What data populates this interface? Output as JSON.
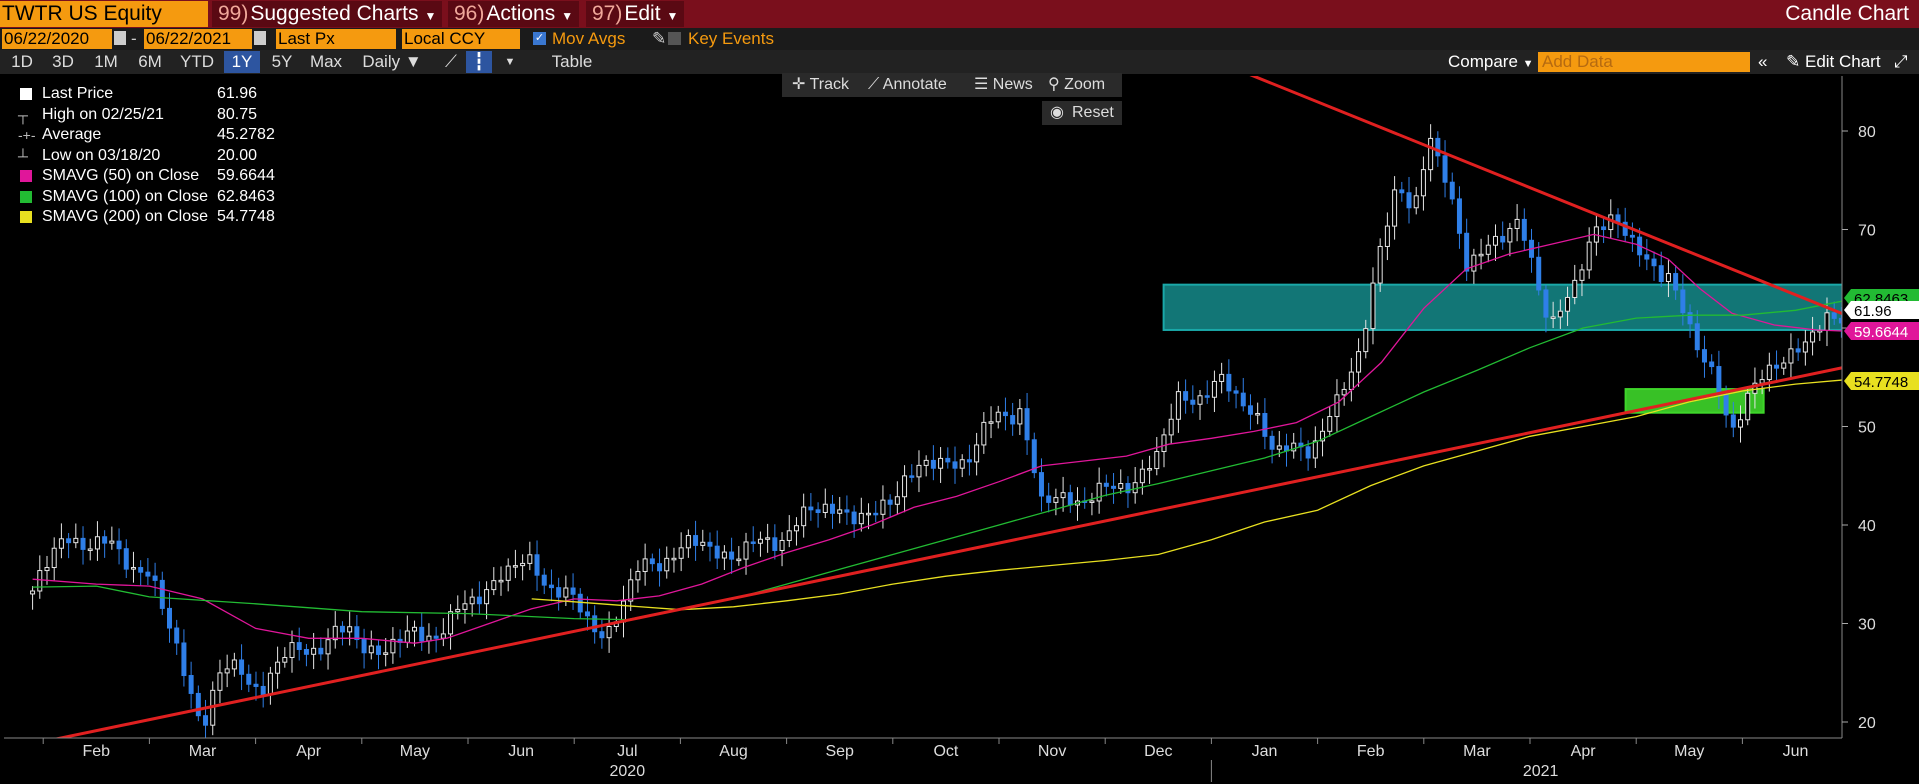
{
  "toolbar": {
    "ticker": "TWTR US Equity",
    "menus": [
      {
        "num": "99)",
        "label": "Suggested Charts"
      },
      {
        "num": "96)",
        "label": "Actions"
      },
      {
        "num": "97)",
        "label": "Edit"
      }
    ],
    "chart_title": "Candle Chart"
  },
  "controls": {
    "start_date": "06/22/2020",
    "end_date": "06/22/2021",
    "date_sep": "-",
    "field": "Last Px",
    "currency": "Local CCY",
    "mov_avgs": "Mov Avgs",
    "key_events": "Key Events",
    "periods": [
      "1D",
      "3D",
      "1M",
      "6M",
      "YTD",
      "1Y",
      "5Y",
      "Max"
    ],
    "selected_period": "1Y",
    "frequency": "Daily",
    "table": "Table",
    "compare": "Compare",
    "add_data_placeholder": "Add Data",
    "edit_chart": "Edit Chart"
  },
  "tools": {
    "track": "Track",
    "annotate": "Annotate",
    "news": "News",
    "zoom": "Zoom",
    "reset": "Reset"
  },
  "legend": [
    {
      "name": "Last Price",
      "value": "61.96",
      "color": "#ffffff",
      "kind": "box"
    },
    {
      "name": "High on 02/25/21",
      "value": "80.75",
      "kind": "high"
    },
    {
      "name": "Average",
      "value": "45.2782",
      "kind": "avg"
    },
    {
      "name": "Low on 03/18/20",
      "value": "20.00",
      "kind": "low"
    },
    {
      "name": "SMAVG (50)  on Close",
      "value": "59.6644",
      "color": "#e0169a",
      "kind": "box"
    },
    {
      "name": "SMAVG (100)  on Close",
      "value": "62.8463",
      "color": "#22bb33",
      "kind": "box"
    },
    {
      "name": "SMAVG (200)  on Close",
      "value": "54.7748",
      "color": "#e8e020",
      "kind": "box"
    }
  ],
  "price_tags": [
    {
      "value": "62.8463",
      "color": "#22bb33"
    },
    {
      "value": "61.96",
      "color": "#ffffff"
    },
    {
      "value": "59.6644",
      "color": "#e0169a"
    },
    {
      "value": "54.7748",
      "color": "#e8e020"
    }
  ],
  "chart_data": {
    "type": "line",
    "ylim": [
      18,
      86
    ],
    "yticks": [
      20,
      30,
      40,
      50,
      60,
      70,
      80
    ],
    "x_months": [
      {
        "label": "Feb",
        "m": 1.5
      },
      {
        "label": "Mar",
        "m": 2.5
      },
      {
        "label": "Apr",
        "m": 3.5
      },
      {
        "label": "May",
        "m": 4.5
      },
      {
        "label": "Jun",
        "m": 5.5
      },
      {
        "label": "Jul",
        "m": 6.5
      },
      {
        "label": "Aug",
        "m": 7.5
      },
      {
        "label": "Sep",
        "m": 8.5
      },
      {
        "label": "Oct",
        "m": 9.5
      },
      {
        "label": "Nov",
        "m": 10.5
      },
      {
        "label": "Dec",
        "m": 11.5
      },
      {
        "label": "Jan",
        "m": 12.5
      },
      {
        "label": "Feb",
        "m": 13.5
      },
      {
        "label": "Mar",
        "m": 14.5
      },
      {
        "label": "Apr",
        "m": 15.5
      },
      {
        "label": "May",
        "m": 16.5
      },
      {
        "label": "Jun",
        "m": 17.5
      }
    ],
    "x_years": [
      {
        "label": "2020",
        "m": 6.5
      },
      {
        "label": "2021",
        "m": 15.1
      }
    ],
    "x_year_divider": 12.0,
    "price": {
      "name": "Last Price",
      "points": [
        [
          0.9,
          33
        ],
        [
          1.2,
          39
        ],
        [
          1.5,
          38
        ],
        [
          1.75,
          37
        ],
        [
          2.0,
          35
        ],
        [
          2.2,
          29
        ],
        [
          2.4,
          23
        ],
        [
          2.5,
          20
        ],
        [
          2.65,
          24
        ],
        [
          2.85,
          26
        ],
        [
          3.05,
          23
        ],
        [
          3.3,
          27
        ],
        [
          3.6,
          28
        ],
        [
          3.9,
          29
        ],
        [
          4.2,
          27
        ],
        [
          4.5,
          29
        ],
        [
          4.8,
          29.5
        ],
        [
          5.0,
          32
        ],
        [
          5.3,
          35
        ],
        [
          5.6,
          36
        ],
        [
          5.9,
          33
        ],
        [
          6.15,
          30
        ],
        [
          6.3,
          29
        ],
        [
          6.6,
          35
        ],
        [
          6.85,
          37
        ],
        [
          7.2,
          38
        ],
        [
          7.5,
          37
        ],
        [
          7.8,
          38
        ],
        [
          8.2,
          41
        ],
        [
          8.5,
          42
        ],
        [
          8.8,
          40
        ],
        [
          9.1,
          45
        ],
        [
          9.4,
          46
        ],
        [
          9.7,
          47
        ],
        [
          10.0,
          51
        ],
        [
          10.2,
          52
        ],
        [
          10.4,
          42
        ],
        [
          10.7,
          43
        ],
        [
          11.0,
          43
        ],
        [
          11.3,
          45
        ],
        [
          11.5,
          47
        ],
        [
          11.7,
          53
        ],
        [
          12.1,
          54
        ],
        [
          12.4,
          52
        ],
        [
          12.6,
          47
        ],
        [
          12.9,
          48
        ],
        [
          13.2,
          52
        ],
        [
          13.4,
          58
        ],
        [
          13.6,
          69
        ],
        [
          13.75,
          74
        ],
        [
          13.9,
          71
        ],
        [
          14.05,
          80.75
        ],
        [
          14.2,
          75
        ],
        [
          14.4,
          66
        ],
        [
          14.6,
          69
        ],
        [
          14.9,
          70
        ],
        [
          15.2,
          61
        ],
        [
          15.4,
          63
        ],
        [
          15.6,
          70
        ],
        [
          15.8,
          72
        ],
        [
          16.0,
          67
        ],
        [
          16.3,
          66
        ],
        [
          16.55,
          58
        ],
        [
          16.75,
          55
        ],
        [
          16.9,
          50
        ],
        [
          17.1,
          53
        ],
        [
          17.3,
          57
        ],
        [
          17.6,
          58
        ],
        [
          17.8,
          61
        ],
        [
          18.0,
          61.96
        ]
      ]
    },
    "sma_series": [
      {
        "name": "SMAVG (50)  on Close",
        "color": "#e0169a",
        "points": [
          [
            0.9,
            34.5
          ],
          [
            1.5,
            34
          ],
          [
            2.0,
            33.8
          ],
          [
            2.5,
            32.5
          ],
          [
            3.0,
            29.5
          ],
          [
            3.5,
            28.5
          ],
          [
            4.0,
            28.5
          ],
          [
            4.5,
            28
          ],
          [
            4.8,
            28.5
          ],
          [
            5.2,
            30
          ],
          [
            5.6,
            31.5
          ],
          [
            6.0,
            32.5
          ],
          [
            6.4,
            32.3
          ],
          [
            6.8,
            32.8
          ],
          [
            7.2,
            34
          ],
          [
            7.6,
            35.7
          ],
          [
            8.0,
            37.2
          ],
          [
            8.4,
            38.5
          ],
          [
            8.8,
            40
          ],
          [
            9.2,
            41.8
          ],
          [
            9.6,
            42.9
          ],
          [
            10.0,
            44.4
          ],
          [
            10.4,
            46
          ],
          [
            10.8,
            46.5
          ],
          [
            11.2,
            47
          ],
          [
            11.6,
            48.2
          ],
          [
            12.0,
            48.8
          ],
          [
            12.4,
            49.5
          ],
          [
            12.8,
            50.4
          ],
          [
            13.2,
            52.5
          ],
          [
            13.6,
            56.5
          ],
          [
            14.0,
            62
          ],
          [
            14.4,
            66
          ],
          [
            14.8,
            67.5
          ],
          [
            15.2,
            68.5
          ],
          [
            15.6,
            69.5
          ],
          [
            16.0,
            68.5
          ],
          [
            16.3,
            67
          ],
          [
            16.6,
            64
          ],
          [
            16.9,
            61.5
          ],
          [
            17.3,
            60.3
          ],
          [
            17.7,
            59.8
          ],
          [
            18.0,
            59.66
          ]
        ]
      },
      {
        "name": "SMAVG (100)  on Close",
        "color": "#22bb33",
        "points": [
          [
            0.9,
            33.7
          ],
          [
            1.5,
            33.8
          ],
          [
            2.0,
            32.7
          ],
          [
            3.0,
            32.0
          ],
          [
            4.0,
            31.2
          ],
          [
            5.0,
            31.0
          ],
          [
            6.0,
            30.5
          ],
          [
            6.5,
            30.4
          ],
          [
            7.0,
            31.5
          ],
          [
            7.5,
            32.5
          ],
          [
            8.0,
            34
          ],
          [
            8.5,
            35.5
          ],
          [
            9.0,
            37
          ],
          [
            9.5,
            38.5
          ],
          [
            10.0,
            40
          ],
          [
            10.5,
            41.5
          ],
          [
            11.0,
            43
          ],
          [
            11.5,
            44.2
          ],
          [
            12.0,
            45.5
          ],
          [
            12.5,
            46.8
          ],
          [
            13.0,
            48.5
          ],
          [
            13.5,
            51
          ],
          [
            14.0,
            53.5
          ],
          [
            14.5,
            55.7
          ],
          [
            15.0,
            58
          ],
          [
            15.5,
            60
          ],
          [
            16.0,
            61
          ],
          [
            16.5,
            61.3
          ],
          [
            17.0,
            61.3
          ],
          [
            17.5,
            61.8
          ],
          [
            18.0,
            62.85
          ]
        ]
      },
      {
        "name": "SMAVG (200)  on Close",
        "color": "#e8e020",
        "points": [
          [
            5.6,
            32.5
          ],
          [
            6.0,
            32.2
          ],
          [
            6.5,
            31.8
          ],
          [
            7.0,
            31.4
          ],
          [
            7.5,
            31.7
          ],
          [
            8.0,
            32.3
          ],
          [
            8.5,
            33
          ],
          [
            9.0,
            34
          ],
          [
            9.5,
            34.8
          ],
          [
            10.0,
            35.4
          ],
          [
            10.5,
            35.9
          ],
          [
            11.0,
            36.4
          ],
          [
            11.5,
            37
          ],
          [
            12.0,
            38.5
          ],
          [
            12.5,
            40.3
          ],
          [
            13.0,
            41.5
          ],
          [
            13.5,
            44
          ],
          [
            14.0,
            46
          ],
          [
            14.5,
            47.5
          ],
          [
            15.0,
            49
          ],
          [
            15.5,
            50
          ],
          [
            16.0,
            51
          ],
          [
            16.5,
            52.5
          ],
          [
            17.0,
            53.6
          ],
          [
            17.5,
            54.3
          ],
          [
            18.0,
            54.77
          ]
        ]
      }
    ],
    "trendlines": [
      {
        "name": "resistance",
        "color": "#e02020",
        "from": [
          12.3,
          86
        ],
        "to": [
          18.85,
          57.5
        ]
      },
      {
        "name": "support",
        "color": "#e02020",
        "from": [
          1.0,
          18
        ],
        "to": [
          18.85,
          58
        ]
      }
    ],
    "zones": [
      {
        "name": "resistance-zone",
        "color": "#1aa8a8",
        "x0": 11.55,
        "x1": 17.95,
        "y0": 59.8,
        "y1": 64.4
      },
      {
        "name": "support-zone",
        "color": "#3ed62a",
        "x0": 15.9,
        "x1": 17.2,
        "y0": 51.4,
        "y1": 53.8
      }
    ]
  }
}
